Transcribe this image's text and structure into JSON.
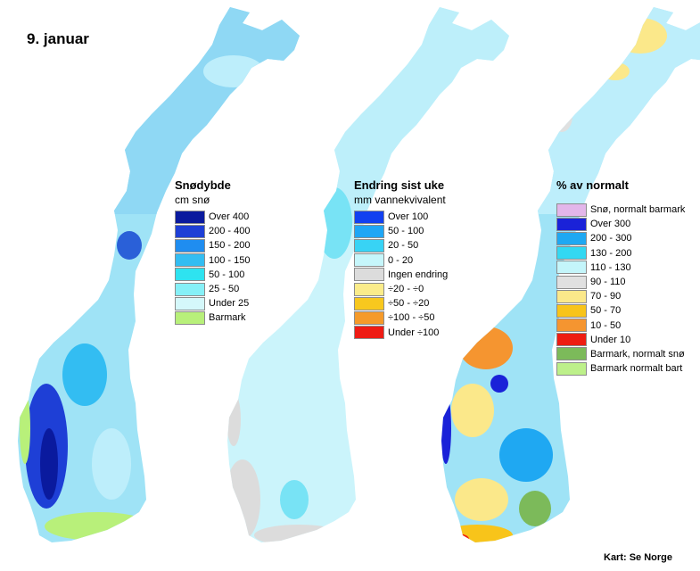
{
  "date_label": "9. januar",
  "credit": "Kart: Se Norge",
  "maps": [
    {
      "title": "Snødybde",
      "unit": "cm snø",
      "classes": [
        {
          "label": "Over 400",
          "color": "#0a1a9e"
        },
        {
          "label": "200 - 400",
          "color": "#1e3fd6"
        },
        {
          "label": "150 - 200",
          "color": "#1f8df0"
        },
        {
          "label": "100 - 150",
          "color": "#33bdf2"
        },
        {
          "label": "50 - 100",
          "color": "#2ee3f0"
        },
        {
          "label": "25 - 50",
          "color": "#86f0f7"
        },
        {
          "label": "Under 25",
          "color": "#d5f8fb"
        },
        {
          "label": "Barmark",
          "color": "#b8f07a"
        }
      ]
    },
    {
      "title": "Endring sist uke",
      "unit": "mm vannekvivalent",
      "classes": [
        {
          "label": "Over 100",
          "color": "#1240f0"
        },
        {
          "label": "50 - 100",
          "color": "#1fa6f5"
        },
        {
          "label": "20 - 50",
          "color": "#38d3f5"
        },
        {
          "label": "0 - 20",
          "color": "#c6f6fb"
        },
        {
          "label": "Ingen endring",
          "color": "#dcdcdc"
        },
        {
          "label": "÷20 - ÷0",
          "color": "#fbec8a"
        },
        {
          "label": "÷50 - ÷20",
          "color": "#f8c81e"
        },
        {
          "label": "÷100 - ÷50",
          "color": "#f59a2a"
        },
        {
          "label": "Under ÷100",
          "color": "#ee1b14"
        }
      ]
    },
    {
      "title": "% av normalt",
      "unit": "",
      "classes": [
        {
          "label": "Snø, normalt barmark",
          "color": "#e3b6ea"
        },
        {
          "label": "Over 300",
          "color": "#1a22d8"
        },
        {
          "label": "200 - 300",
          "color": "#1fa8f2"
        },
        {
          "label": "130 - 200",
          "color": "#33d8f2"
        },
        {
          "label": "110 - 130",
          "color": "#c4f5fa"
        },
        {
          "label": "90 - 110",
          "color": "#e0e0e0"
        },
        {
          "label": "70 - 90",
          "color": "#fbe88a"
        },
        {
          "label": "50 - 70",
          "color": "#f8c41a"
        },
        {
          "label": "10 - 50",
          "color": "#f59530"
        },
        {
          "label": "Under 10",
          "color": "#ee1d12"
        },
        {
          "label": "Barmark, normalt snø",
          "color": "#7cba5a"
        },
        {
          "label": "Barmark normalt bart",
          "color": "#bdf08a"
        }
      ]
    }
  ]
}
